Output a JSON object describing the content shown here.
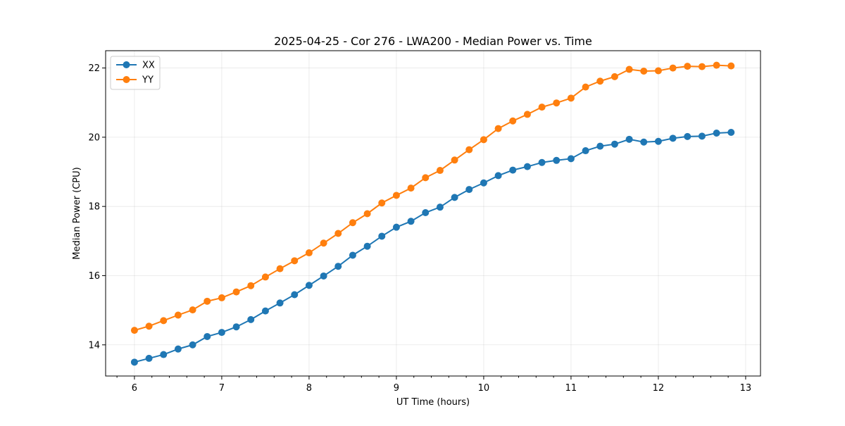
{
  "chart_data": {
    "type": "line",
    "title": "2025-04-25 - Cor 276 - LWA200 - Median Power vs. Time",
    "xlabel": "UT Time (hours)",
    "ylabel": "Median Power (CPU)",
    "xlim": [
      5.67,
      13.17
    ],
    "ylim": [
      13.1,
      22.5
    ],
    "xticks": [
      6,
      7,
      8,
      9,
      10,
      11,
      12,
      13
    ],
    "xtick_labels": [
      "6",
      "7",
      "8",
      "9",
      "10",
      "11",
      "12",
      "13"
    ],
    "yticks": [
      14,
      16,
      18,
      20,
      22
    ],
    "ytick_labels": [
      "14",
      "16",
      "18",
      "20",
      "22"
    ],
    "grid": true,
    "legend_position": "upper-left",
    "x": [
      6.0,
      6.1667,
      6.3333,
      6.5,
      6.6667,
      6.8333,
      7.0,
      7.1667,
      7.3333,
      7.5,
      7.6667,
      7.8333,
      8.0,
      8.1667,
      8.3333,
      8.5,
      8.6667,
      8.8333,
      9.0,
      9.1667,
      9.3333,
      9.5,
      9.6667,
      9.8333,
      10.0,
      10.1667,
      10.3333,
      10.5,
      10.6667,
      10.8333,
      11.0,
      11.1667,
      11.3333,
      11.5,
      11.6667,
      11.8333,
      12.0,
      12.1667,
      12.3333,
      12.5,
      12.6667,
      12.8333
    ],
    "series": [
      {
        "name": "XX",
        "color": "#1f77b4",
        "values": [
          13.5,
          13.61,
          13.72,
          13.88,
          14.0,
          14.24,
          14.36,
          14.52,
          14.73,
          14.98,
          15.21,
          15.45,
          15.72,
          15.99,
          16.27,
          16.59,
          16.85,
          17.14,
          17.4,
          17.57,
          17.82,
          17.98,
          18.26,
          18.49,
          18.68,
          18.89,
          19.05,
          19.15,
          19.27,
          19.33,
          19.38,
          19.61,
          19.74,
          19.8,
          19.94,
          19.86,
          19.88,
          19.97,
          20.02,
          20.03,
          20.12,
          20.14
        ]
      },
      {
        "name": "YY",
        "color": "#ff7f0e",
        "values": [
          14.42,
          14.54,
          14.7,
          14.86,
          15.01,
          15.26,
          15.36,
          15.53,
          15.71,
          15.96,
          16.2,
          16.43,
          16.66,
          16.94,
          17.22,
          17.53,
          17.79,
          18.1,
          18.32,
          18.53,
          18.83,
          19.04,
          19.34,
          19.64,
          19.93,
          20.25,
          20.47,
          20.66,
          20.87,
          20.99,
          21.13,
          21.45,
          21.62,
          21.75,
          21.96,
          21.91,
          21.92,
          22.0,
          22.05,
          22.04,
          22.08,
          22.06
        ]
      }
    ]
  }
}
